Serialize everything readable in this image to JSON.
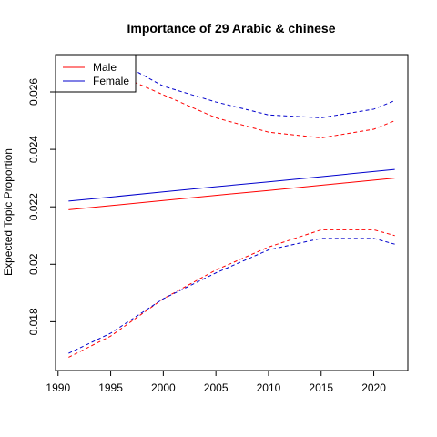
{
  "chart_data": {
    "type": "line",
    "title": "Importance of 29 Arabic & chinese",
    "y_label": "Expected Topic Proportion",
    "x": [
      1991,
      1995,
      2000,
      2005,
      2010,
      2015,
      2020,
      2022
    ],
    "series": [
      {
        "name": "Male",
        "color": "#ff0000",
        "values": [
          0.0219,
          0.02204,
          0.02222,
          0.0224,
          0.02257,
          0.02275,
          0.02293,
          0.023
        ],
        "lower": [
          0.01676,
          0.0175,
          0.0188,
          0.0198,
          0.0206,
          0.0212,
          0.0212,
          0.021
        ],
        "upper": [
          0.0272,
          0.0267,
          0.0259,
          0.0251,
          0.0246,
          0.0244,
          0.0247,
          0.025
        ]
      },
      {
        "name": "Female",
        "color": "#0000cc",
        "values": [
          0.0222,
          0.02234,
          0.02252,
          0.0227,
          0.02287,
          0.02305,
          0.02323,
          0.0233
        ],
        "lower": [
          0.0169,
          0.0176,
          0.0188,
          0.0197,
          0.0205,
          0.0209,
          0.0209,
          0.0207
        ],
        "upper": [
          0.0278,
          0.0272,
          0.0262,
          0.02565,
          0.0252,
          0.0251,
          0.0254,
          0.0257
        ]
      }
    ],
    "xlim": [
      1989.76,
      2023.24
    ],
    "ylim": [
      0.0163,
      0.0273
    ],
    "xticks": [
      1990,
      1995,
      2000,
      2005,
      2010,
      2015,
      2020
    ],
    "yticks": [
      0.018,
      0.02,
      0.022,
      0.024,
      0.026
    ],
    "legend": "top-left"
  }
}
